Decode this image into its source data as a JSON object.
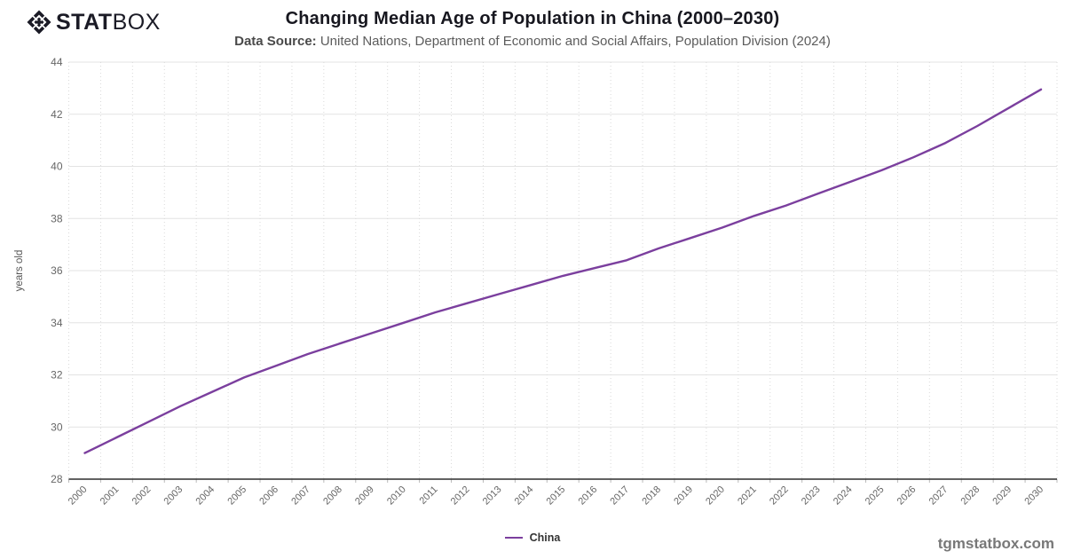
{
  "logo": {
    "icon": "statbox-diamond-icon",
    "text_bold": "STAT",
    "text_light": "BOX"
  },
  "header": {
    "title": "Changing Median Age of Population in China (2000–2030)",
    "subtitle_label": "Data Source:",
    "subtitle_text": " United Nations, Department of Economic and Social Affairs, Population Division (2024)"
  },
  "chart_data": {
    "type": "line",
    "title": "Changing Median Age of Population in China (2000–2030)",
    "xlabel": "",
    "ylabel": "years old",
    "ylim": [
      28,
      44
    ],
    "ytick_step": 2,
    "grid": true,
    "x_gridlines": "dotted-vertical-at-band-edges",
    "legend_position": "bottom-center",
    "categories": [
      "2000",
      "2001",
      "2002",
      "2003",
      "2004",
      "2005",
      "2006",
      "2007",
      "2008",
      "2009",
      "2010",
      "2011",
      "2012",
      "2013",
      "2014",
      "2015",
      "2016",
      "2017",
      "2018",
      "2019",
      "2020",
      "2021",
      "2022",
      "2023",
      "2024",
      "2025",
      "2026",
      "2027",
      "2028",
      "2029",
      "2030"
    ],
    "series": [
      {
        "name": "China",
        "color": "#7b3f9e",
        "values": [
          29.0,
          29.6,
          30.2,
          30.8,
          31.35,
          31.9,
          32.35,
          32.8,
          33.2,
          33.6,
          34.0,
          34.4,
          34.75,
          35.1,
          35.45,
          35.8,
          36.1,
          36.4,
          36.85,
          37.25,
          37.65,
          38.1,
          38.5,
          38.95,
          39.4,
          39.85,
          40.35,
          40.9,
          41.55,
          42.25,
          42.95
        ]
      }
    ]
  },
  "legend": {
    "items": [
      {
        "label": "China",
        "color": "#7b3f9e"
      }
    ]
  },
  "footer": {
    "watermark": "tgmstatbox.com"
  },
  "colors": {
    "line": "#7b3f9e",
    "grid_major": "#e3e3e3",
    "grid_dotted": "#d9d9d9",
    "axis": "#2e2e2e",
    "tick_text": "#666666",
    "title_text": "#17171f"
  }
}
